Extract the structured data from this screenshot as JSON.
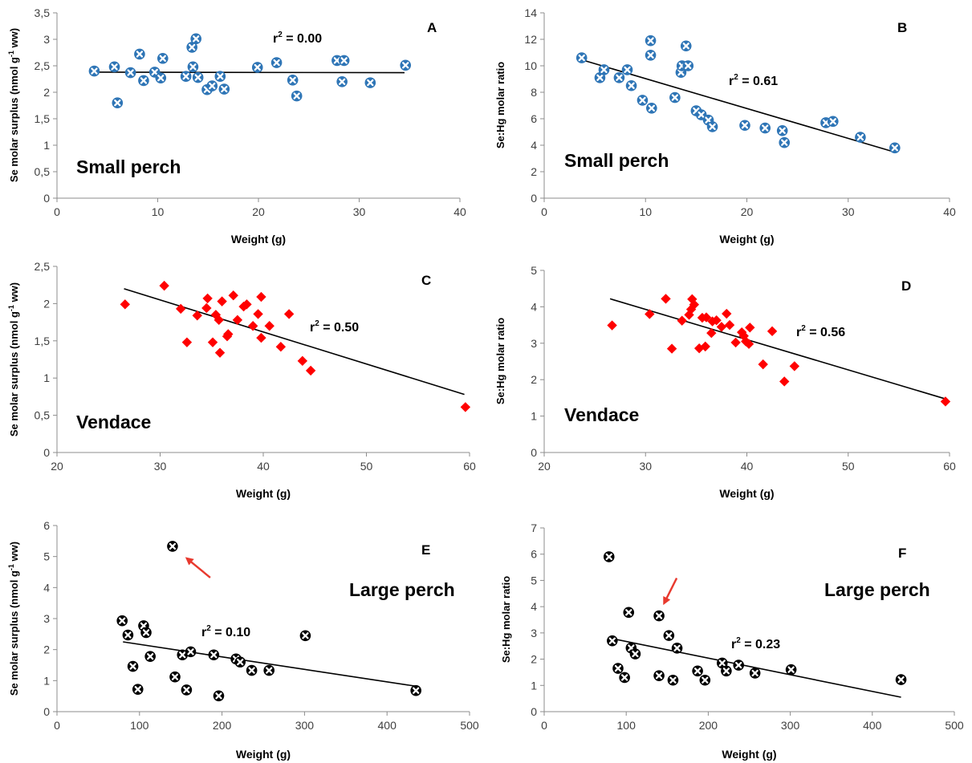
{
  "chart_data": [
    {
      "panel": "A",
      "type": "scatter",
      "title": "",
      "xlabel": "Weight (g)",
      "ylabel": "Se molar surplus (nmol g-1 ww)",
      "xlim": [
        0,
        40
      ],
      "ylim": [
        0,
        3.5
      ],
      "xticks": [
        "0",
        "10",
        "20",
        "30",
        "40"
      ],
      "yticks": [
        "0",
        "0,5",
        "1",
        "1,5",
        "2",
        "2,5",
        "3",
        "3,5"
      ],
      "annotation": "Small perch",
      "r2": "0.00",
      "marker": "circle-x",
      "color": "#2e75b6",
      "trendline": [
        [
          3.5,
          2.38
        ],
        [
          34.5,
          2.37
        ]
      ],
      "points": [
        [
          3.7,
          2.4
        ],
        [
          5.7,
          2.48
        ],
        [
          6,
          1.8
        ],
        [
          7.3,
          2.37
        ],
        [
          8.2,
          2.72
        ],
        [
          8.6,
          2.22
        ],
        [
          9.7,
          2.38
        ],
        [
          10.3,
          2.27
        ],
        [
          10.5,
          2.64
        ],
        [
          12.8,
          2.3
        ],
        [
          13.4,
          2.85
        ],
        [
          13.5,
          2.48
        ],
        [
          13.8,
          3.01
        ],
        [
          14,
          2.28
        ],
        [
          14.9,
          2.05
        ],
        [
          15.4,
          2.12
        ],
        [
          16.2,
          2.3
        ],
        [
          16.6,
          2.06
        ],
        [
          19.9,
          2.47
        ],
        [
          21.8,
          2.56
        ],
        [
          23.4,
          2.23
        ],
        [
          23.8,
          1.93
        ],
        [
          27.8,
          2.6
        ],
        [
          28.3,
          2.2
        ],
        [
          28.5,
          2.6
        ],
        [
          31.1,
          2.18
        ],
        [
          34.6,
          2.51
        ]
      ]
    },
    {
      "panel": "B",
      "type": "scatter",
      "title": "",
      "xlabel": "Weight (g)",
      "ylabel": "Se:Hg molar ratio",
      "xlim": [
        0,
        40
      ],
      "ylim": [
        0,
        14
      ],
      "xticks": [
        "0",
        "10",
        "20",
        "30",
        "40"
      ],
      "yticks": [
        "0",
        "2",
        "4",
        "6",
        "8",
        "10",
        "12",
        "14"
      ],
      "annotation": "Small perch",
      "r2": "0.61",
      "marker": "circle-x",
      "color": "#2e75b6",
      "trendline": [
        [
          3.5,
          10.5
        ],
        [
          34.5,
          3.5
        ]
      ],
      "points": [
        [
          3.7,
          10.6
        ],
        [
          5.5,
          9.1
        ],
        [
          5.9,
          9.7
        ],
        [
          7.4,
          9.1
        ],
        [
          8.2,
          9.7
        ],
        [
          8.6,
          8.5
        ],
        [
          9.7,
          7.4
        ],
        [
          10.5,
          11.9
        ],
        [
          10.5,
          10.8
        ],
        [
          10.6,
          6.8
        ],
        [
          12.9,
          7.6
        ],
        [
          13.5,
          9.5
        ],
        [
          13.6,
          10
        ],
        [
          14,
          11.5
        ],
        [
          14.2,
          10
        ],
        [
          15,
          6.6
        ],
        [
          15.5,
          6.3
        ],
        [
          16.2,
          5.9
        ],
        [
          16.6,
          5.4
        ],
        [
          19.8,
          5.5
        ],
        [
          21.8,
          5.3
        ],
        [
          23.5,
          5.1
        ],
        [
          23.7,
          4.2
        ],
        [
          27.8,
          5.7
        ],
        [
          28.5,
          5.8
        ],
        [
          31.2,
          4.6
        ],
        [
          34.6,
          3.8
        ]
      ]
    },
    {
      "panel": "C",
      "type": "scatter",
      "title": "",
      "xlabel": "Weight (g)",
      "ylabel": "Se molar surplus (nmol g-1 ww)",
      "xlim": [
        20,
        60
      ],
      "ylim": [
        0,
        2.5
      ],
      "xticks": [
        "20",
        "30",
        "40",
        "50",
        "60"
      ],
      "yticks": [
        "0",
        "0,5",
        "1",
        "1,5",
        "2",
        "2,5"
      ],
      "annotation": "Vendace",
      "r2": "0.50",
      "marker": "diamond",
      "color": "#ff0000",
      "trendline": [
        [
          26.5,
          2.2
        ],
        [
          59.5,
          0.78
        ]
      ],
      "points": [
        [
          26.6,
          1.99
        ],
        [
          30.4,
          2.24
        ],
        [
          32,
          1.93
        ],
        [
          32.6,
          1.48
        ],
        [
          33.6,
          1.84
        ],
        [
          34.5,
          1.94
        ],
        [
          34.6,
          2.07
        ],
        [
          35.1,
          1.48
        ],
        [
          35.4,
          1.85
        ],
        [
          35.7,
          1.78
        ],
        [
          35.8,
          1.34
        ],
        [
          36,
          2.03
        ],
        [
          36.5,
          1.56
        ],
        [
          36.6,
          1.59
        ],
        [
          37.1,
          2.11
        ],
        [
          37.5,
          1.78
        ],
        [
          38.1,
          1.96
        ],
        [
          38.4,
          1.99
        ],
        [
          39,
          1.7
        ],
        [
          39.5,
          1.86
        ],
        [
          39.8,
          2.09
        ],
        [
          39.8,
          1.54
        ],
        [
          40.6,
          1.7
        ],
        [
          41.7,
          1.42
        ],
        [
          42.5,
          1.86
        ],
        [
          43.8,
          1.23
        ],
        [
          44.6,
          1.1
        ],
        [
          59.6,
          0.61
        ]
      ]
    },
    {
      "panel": "D",
      "type": "scatter",
      "title": "",
      "xlabel": "Weight (g)",
      "ylabel": "Se:Hg molar ratio",
      "xlim": [
        20,
        60
      ],
      "ylim": [
        0,
        5
      ],
      "xticks": [
        "20",
        "30",
        "40",
        "50",
        "60"
      ],
      "yticks": [
        "0",
        "1",
        "2",
        "3",
        "4",
        "5"
      ],
      "annotation": "Vendace",
      "r2": "0.56",
      "marker": "diamond",
      "color": "#ff0000",
      "trendline": [
        [
          26.5,
          4.22
        ],
        [
          59.5,
          1.48
        ]
      ],
      "points": [
        [
          26.7,
          3.49
        ],
        [
          30.4,
          3.8
        ],
        [
          32,
          4.22
        ],
        [
          32.6,
          2.85
        ],
        [
          33.6,
          3.62
        ],
        [
          34.3,
          3.78
        ],
        [
          34.5,
          3.93
        ],
        [
          34.6,
          4.21
        ],
        [
          34.8,
          4.06
        ],
        [
          35.3,
          2.86
        ],
        [
          35.6,
          3.7
        ],
        [
          35.9,
          2.91
        ],
        [
          36,
          3.71
        ],
        [
          36.5,
          3.28
        ],
        [
          36.6,
          3.6
        ],
        [
          37,
          3.63
        ],
        [
          37.5,
          3.45
        ],
        [
          38,
          3.81
        ],
        [
          38.3,
          3.5
        ],
        [
          38.9,
          3.02
        ],
        [
          39.5,
          3.3
        ],
        [
          39.7,
          3.2
        ],
        [
          39.9,
          3.05
        ],
        [
          40.2,
          2.98
        ],
        [
          40.3,
          3.43
        ],
        [
          41.6,
          2.42
        ],
        [
          42.5,
          3.33
        ],
        [
          43.7,
          1.95
        ],
        [
          44.7,
          2.37
        ],
        [
          59.6,
          1.4
        ]
      ]
    },
    {
      "panel": "E",
      "type": "scatter",
      "title": "",
      "xlabel": "Weight (g)",
      "ylabel": "Se molar surplus (nmol g-1 ww)",
      "xlim": [
        0,
        500
      ],
      "ylim": [
        0,
        6
      ],
      "xticks": [
        "0",
        "100",
        "200",
        "300",
        "400",
        "500"
      ],
      "yticks": [
        "0",
        "1",
        "2",
        "3",
        "4",
        "5",
        "6"
      ],
      "annotation": "Large perch",
      "r2": "0.10",
      "marker": "circle-x",
      "color": "#000000",
      "trendline": [
        [
          80,
          2.25
        ],
        [
          435,
          0.82
        ]
      ],
      "arrow_target": [
        140,
        5.33
      ],
      "points": [
        [
          79,
          2.93
        ],
        [
          86,
          2.47
        ],
        [
          92,
          1.46
        ],
        [
          98,
          0.72
        ],
        [
          105,
          2.77
        ],
        [
          108,
          2.55
        ],
        [
          113,
          1.78
        ],
        [
          140,
          5.33
        ],
        [
          143,
          1.12
        ],
        [
          152,
          1.83
        ],
        [
          157,
          0.7
        ],
        [
          162,
          1.93
        ],
        [
          190,
          1.83
        ],
        [
          196,
          0.51
        ],
        [
          217,
          1.7
        ],
        [
          222,
          1.6
        ],
        [
          236,
          1.33
        ],
        [
          257,
          1.33
        ],
        [
          301,
          2.45
        ],
        [
          435,
          0.68
        ]
      ]
    },
    {
      "panel": "F",
      "type": "scatter",
      "title": "",
      "xlabel": "Weight (g)",
      "ylabel": "Se:Hg molar ratio",
      "xlim": [
        0,
        500
      ],
      "ylim": [
        0,
        7
      ],
      "xticks": [
        "0",
        "100",
        "200",
        "300",
        "400",
        "500"
      ],
      "yticks": [
        "0",
        "1",
        "2",
        "3",
        "4",
        "5",
        "6",
        "7"
      ],
      "annotation": "Large perch",
      "r2": "0.23",
      "marker": "circle-x",
      "color": "#000000",
      "trendline": [
        [
          80,
          2.8
        ],
        [
          435,
          0.55
        ]
      ],
      "arrow_target": [
        140,
        3.65
      ],
      "points": [
        [
          79,
          5.9
        ],
        [
          83,
          2.7
        ],
        [
          90,
          1.65
        ],
        [
          98,
          1.3
        ],
        [
          103,
          3.78
        ],
        [
          106,
          2.43
        ],
        [
          111,
          2.2
        ],
        [
          140,
          3.65
        ],
        [
          140,
          1.37
        ],
        [
          152,
          2.9
        ],
        [
          157,
          1.2
        ],
        [
          162,
          2.42
        ],
        [
          187,
          1.55
        ],
        [
          196,
          1.2
        ],
        [
          217,
          1.85
        ],
        [
          222,
          1.55
        ],
        [
          237,
          1.77
        ],
        [
          257,
          1.47
        ],
        [
          301,
          1.6
        ],
        [
          435,
          1.22
        ]
      ]
    }
  ]
}
